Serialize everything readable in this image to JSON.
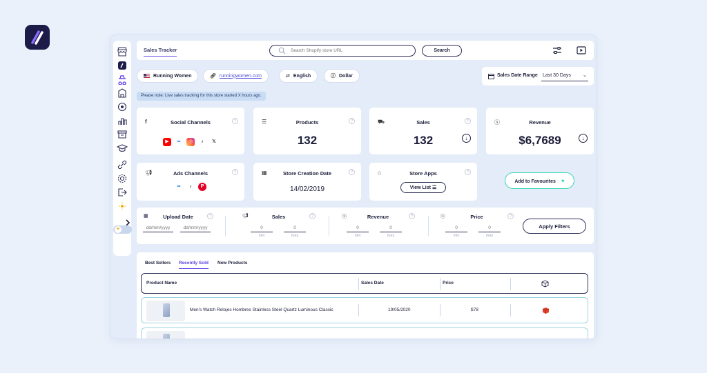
{
  "topbar": {
    "tab_label": "Sales Tracker",
    "search_placeholder": "Search Shopify store URL",
    "search_button": "Search"
  },
  "store": {
    "name": "Running Women",
    "url": "runningwomen.com",
    "language": "English",
    "currency": "Dollar"
  },
  "date_range": {
    "label": "Sales Date Range",
    "value": "Last 30 Days"
  },
  "notice": "Please note: Live sales tracking for this store started X hours ago.",
  "stats": {
    "social_channels": {
      "title": "Social Channels",
      "icons": [
        "youtube-icon",
        "meta-icon",
        "instagram-icon",
        "tiktok-icon",
        "x-icon"
      ]
    },
    "products": {
      "title": "Products",
      "value": "132"
    },
    "sales": {
      "title": "Sales",
      "value": "132"
    },
    "revenue": {
      "title": "Revenue",
      "value": "$6,7689"
    },
    "ads_channels": {
      "title": "Ads Channels",
      "icons": [
        "meta-icon",
        "tiktok-icon",
        "pinterest-icon"
      ]
    },
    "store_creation": {
      "title": "Store Creation Date",
      "value": "14/02/2019"
    },
    "store_apps": {
      "title": "Store Apps",
      "button": "View List"
    }
  },
  "favourites_button": "Add to Favourites",
  "filters": {
    "upload_date": {
      "label": "Upload Date",
      "from_placeholder": "dd/mm/yyyy",
      "to_placeholder": "dd/mm/yyyy"
    },
    "sales": {
      "label": "Sales",
      "min_placeholder": "0",
      "max_placeholder": "0",
      "min_label": "min",
      "max_label": "max"
    },
    "revenue": {
      "label": "Revenue",
      "min_placeholder": "0",
      "max_placeholder": "0",
      "min_label": "min",
      "max_label": "max"
    },
    "price": {
      "label": "Price",
      "min_placeholder": "0",
      "max_placeholder": "0",
      "min_label": "min",
      "max_label": "max"
    },
    "apply_button": "Apply Filters"
  },
  "product_tabs": [
    "Best Sellers",
    "Recently Sold",
    "New Products"
  ],
  "table": {
    "headers": [
      "Product Name",
      "Sales Date",
      "Price"
    ],
    "rows": [
      {
        "name": "Men's Watch Relojes Hombres Stainless Steel Quartz Luminous Classic",
        "date": "19/05/2020",
        "price": "$78"
      }
    ]
  },
  "colors": {
    "accent": "#6b4de6",
    "navy": "#1d1b48",
    "teal": "#3bd6b6",
    "background": "#eaf1fb"
  }
}
